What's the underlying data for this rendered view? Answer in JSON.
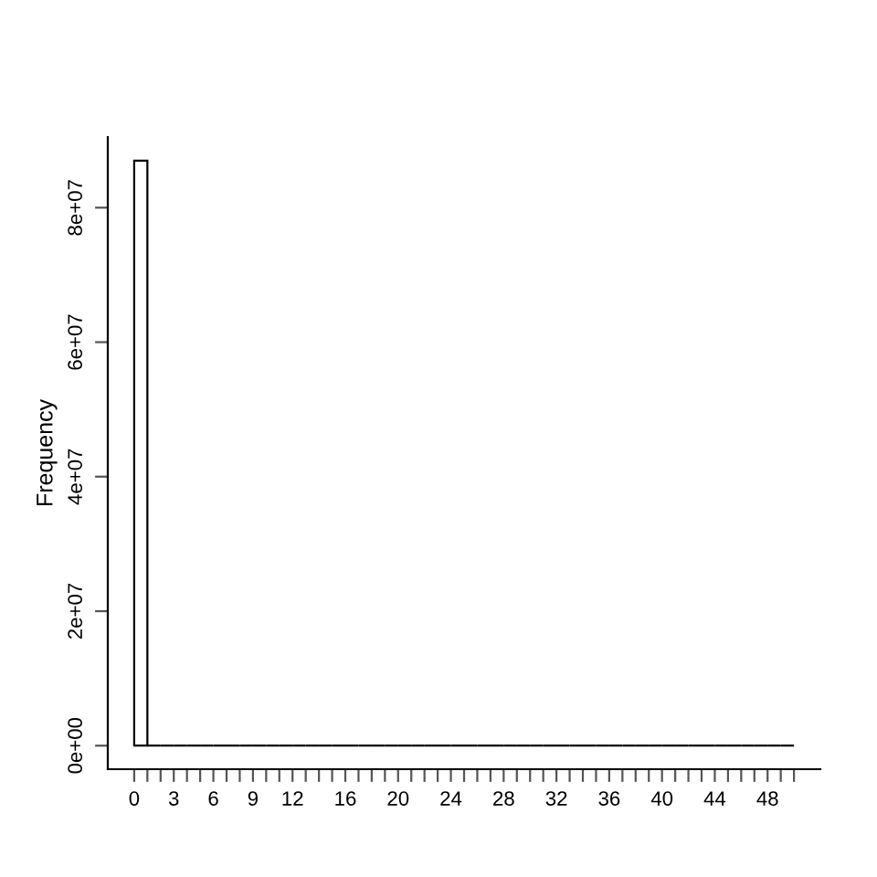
{
  "chart_data": {
    "type": "histogram",
    "ylabel": "Frequency",
    "bins": [
      0,
      1,
      2,
      3,
      4,
      5,
      6,
      7,
      8,
      9,
      10,
      11,
      12,
      13,
      14,
      15,
      16,
      17,
      18,
      19,
      20,
      21,
      22,
      23,
      24,
      25,
      26,
      27,
      28,
      29,
      30,
      31,
      32,
      33,
      34,
      35,
      36,
      37,
      38,
      39,
      40,
      41,
      42,
      43,
      44,
      45,
      46,
      47,
      48,
      49,
      50
    ],
    "values": [
      87000000,
      0,
      0,
      0,
      0,
      0,
      0,
      0,
      0,
      0,
      0,
      0,
      0,
      0,
      0,
      0,
      0,
      0,
      0,
      0,
      0,
      0,
      0,
      0,
      0,
      0,
      0,
      0,
      0,
      0,
      0,
      0,
      0,
      0,
      0,
      0,
      0,
      0,
      0,
      0,
      0,
      0,
      0,
      0,
      0,
      0,
      0,
      0,
      0,
      0
    ],
    "xlim": [
      -2,
      52
    ],
    "ylim": [
      -3500000,
      90500000
    ],
    "xticks": [
      0,
      {
        "value": 1,
        "label": null
      },
      {
        "value": 2,
        "label": null
      },
      3,
      {
        "value": 4,
        "label": null
      },
      {
        "value": 5,
        "label": null
      },
      6,
      {
        "value": 7,
        "label": null
      },
      {
        "value": 8,
        "label": null
      },
      9,
      {
        "value": 10,
        "label": null
      },
      {
        "value": 11,
        "label": null
      },
      12,
      {
        "value": 13,
        "label": null
      },
      {
        "value": 14,
        "label": null
      },
      {
        "value": 15,
        "label": null
      },
      16,
      {
        "value": 17,
        "label": null
      },
      {
        "value": 18,
        "label": null
      },
      {
        "value": 19,
        "label": null
      },
      20,
      {
        "value": 21,
        "label": null
      },
      {
        "value": 22,
        "label": null
      },
      {
        "value": 23,
        "label": null
      },
      24,
      {
        "value": 25,
        "label": null
      },
      {
        "value": 26,
        "label": null
      },
      {
        "value": 27,
        "label": null
      },
      28,
      {
        "value": 29,
        "label": null
      },
      {
        "value": 30,
        "label": null
      },
      {
        "value": 31,
        "label": null
      },
      32,
      {
        "value": 33,
        "label": null
      },
      {
        "value": 34,
        "label": null
      },
      {
        "value": 35,
        "label": null
      },
      36,
      {
        "value": 37,
        "label": null
      },
      {
        "value": 38,
        "label": null
      },
      {
        "value": 39,
        "label": null
      },
      40,
      {
        "value": 41,
        "label": null
      },
      {
        "value": 42,
        "label": null
      },
      {
        "value": 43,
        "label": null
      },
      44,
      {
        "value": 45,
        "label": null
      },
      {
        "value": 46,
        "label": null
      },
      {
        "value": 47,
        "label": null
      },
      48,
      {
        "value": 49,
        "label": null
      },
      {
        "value": 50,
        "label": null
      }
    ],
    "yticks": [
      {
        "value": 0,
        "label": "0e+00"
      },
      {
        "value": 20000000,
        "label": "2e+07"
      },
      {
        "value": 40000000,
        "label": "4e+07"
      },
      {
        "value": 60000000,
        "label": "6e+07"
      },
      {
        "value": 80000000,
        "label": "8e+07"
      }
    ],
    "grid": false,
    "legend": false
  }
}
